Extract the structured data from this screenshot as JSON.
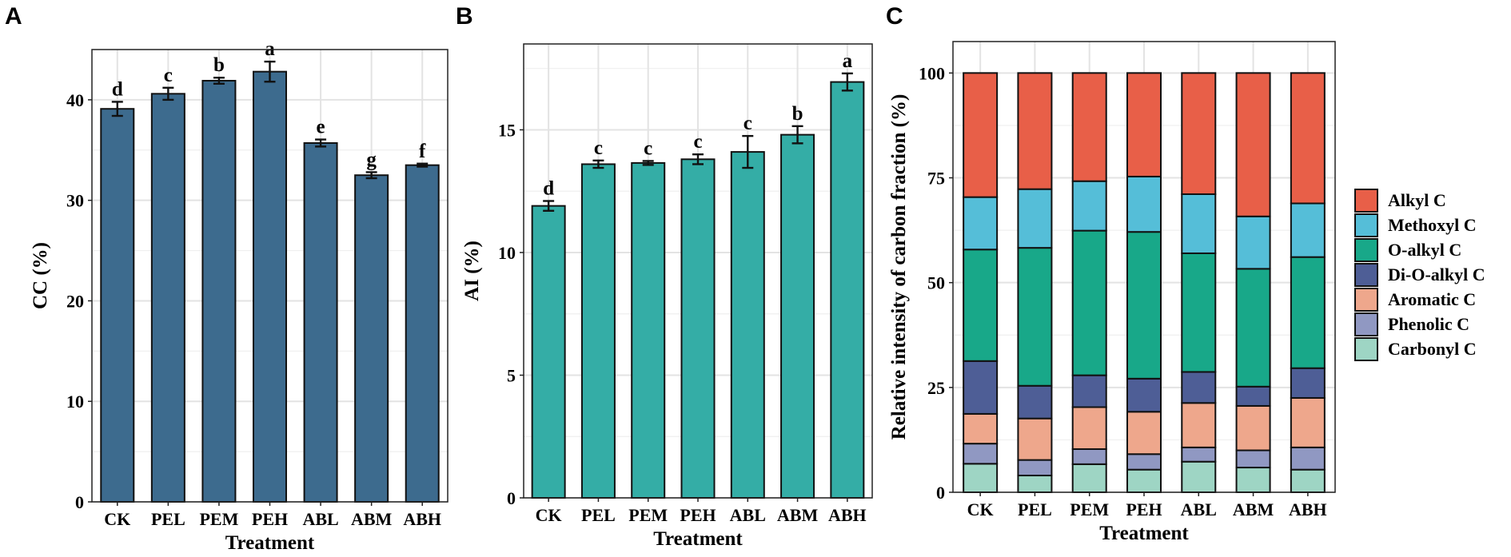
{
  "chart_data": [
    {
      "panel": "A",
      "type": "bar",
      "categories": [
        "CK",
        "PEL",
        "PEM",
        "PEH",
        "ABL",
        "ABM",
        "ABH"
      ],
      "values": [
        39.1,
        40.6,
        41.9,
        42.8,
        35.7,
        32.5,
        33.5
      ],
      "errors": [
        0.7,
        0.6,
        0.3,
        1.0,
        0.35,
        0.3,
        0.15
      ],
      "significance": [
        "d",
        "c",
        "b",
        "a",
        "e",
        "g",
        "f"
      ],
      "ylabel": "CC (%)",
      "xlabel": "Treatment",
      "ylim": [
        0,
        45
      ],
      "yticks": [
        0,
        10,
        20,
        30,
        40
      ],
      "color": "#3d6b8e",
      "grid": true
    },
    {
      "panel": "B",
      "type": "bar",
      "categories": [
        "CK",
        "PEL",
        "PEM",
        "PEH",
        "ABL",
        "ABM",
        "ABH"
      ],
      "values": [
        11.9,
        13.6,
        13.65,
        13.8,
        14.1,
        14.8,
        16.95
      ],
      "errors": [
        0.2,
        0.15,
        0.08,
        0.2,
        0.65,
        0.35,
        0.35
      ],
      "significance": [
        "d",
        "c",
        "c",
        "c",
        "c",
        "b",
        "a"
      ],
      "ylabel": "AI (%)",
      "xlabel": "Treatment",
      "ylim": [
        0,
        18.5
      ],
      "yticks": [
        0,
        5,
        10,
        15
      ],
      "color": "#34ada6",
      "grid": true
    },
    {
      "panel": "C",
      "type": "stacked-bar",
      "categories": [
        "CK",
        "PEL",
        "PEM",
        "PEH",
        "ABL",
        "ABM",
        "ABH"
      ],
      "series": [
        {
          "name": "Carbonyl C",
          "color": "#9ed5c4",
          "values": [
            6.8,
            4.0,
            6.7,
            5.4,
            7.3,
            5.9,
            5.4
          ]
        },
        {
          "name": "Phenolic C",
          "color": "#9098c2",
          "values": [
            4.8,
            3.7,
            3.6,
            3.7,
            3.4,
            4.1,
            5.3
          ]
        },
        {
          "name": "Aromatic C",
          "color": "#eea78c",
          "values": [
            7.1,
            9.9,
            10.0,
            10.1,
            10.6,
            10.6,
            11.8
          ]
        },
        {
          "name": "Di-O-alkyl C",
          "color": "#4e5e96",
          "values": [
            12.6,
            7.8,
            7.6,
            7.9,
            7.4,
            4.6,
            7.1
          ]
        },
        {
          "name": "O-alkyl C",
          "color": "#18a889",
          "values": [
            26.6,
            32.9,
            34.5,
            35.0,
            28.3,
            28.1,
            26.5
          ]
        },
        {
          "name": "Methoxyl C",
          "color": "#55bed8",
          "values": [
            12.5,
            14.0,
            11.8,
            13.2,
            14.1,
            12.5,
            12.8
          ]
        },
        {
          "name": "Alkyl C",
          "color": "#e85f48",
          "values": [
            29.6,
            27.7,
            25.8,
            24.7,
            28.9,
            34.2,
            31.1
          ]
        }
      ],
      "legend_order": [
        "Alkyl C",
        "Methoxyl C",
        "O-alkyl C",
        "Di-O-alkyl C",
        "Aromatic C",
        "Phenolic C",
        "Carbonyl C"
      ],
      "legend_position": "right",
      "ylabel": "Relative intensity of carbon fraction (%)",
      "xlabel": "Treatment",
      "ylim": [
        0,
        107.5
      ],
      "yticks": [
        0,
        25,
        50,
        75,
        100
      ],
      "grid": true
    }
  ]
}
